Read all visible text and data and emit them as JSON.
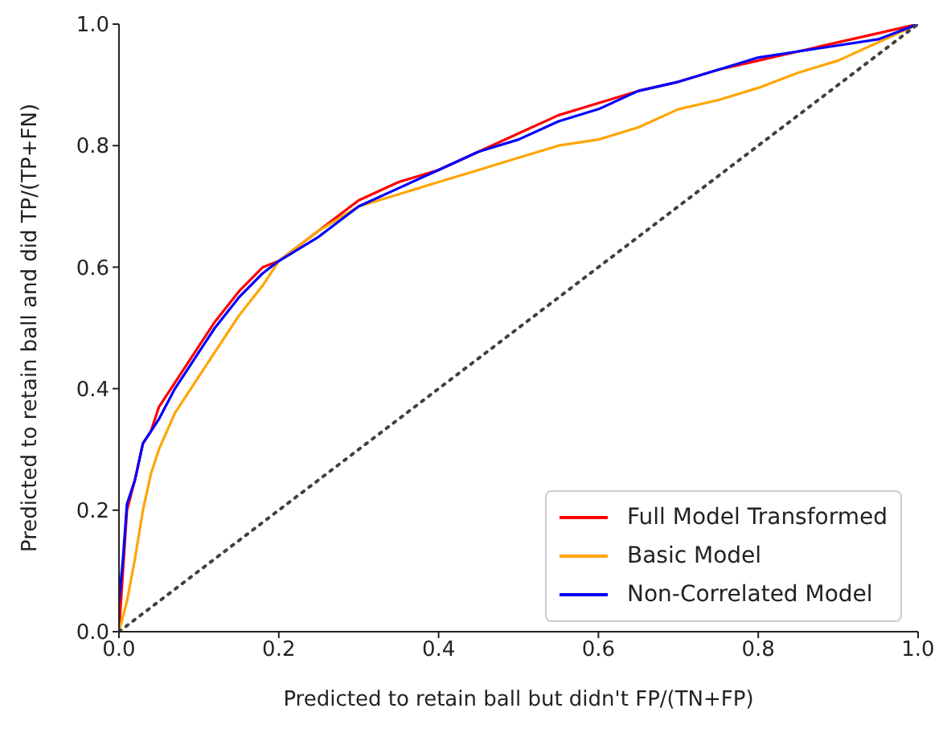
{
  "chart_data": {
    "type": "line",
    "xlabel": "Predicted to retain ball but didn't FP/(TN+FP)",
    "ylabel": "Predicted to retain ball and did TP/(TP+FN)",
    "xlim": [
      0,
      1
    ],
    "ylim": [
      0,
      1
    ],
    "xticks": [
      {
        "value": 0,
        "label": "0.0"
      },
      0.2,
      0.4,
      0.6,
      0.8,
      {
        "value": 1,
        "label": "1.0"
      }
    ],
    "yticks": [
      {
        "value": 0,
        "label": "0.0"
      },
      0.2,
      0.4,
      0.6,
      0.8,
      {
        "value": 1,
        "label": "1.0"
      }
    ],
    "legend": "bottom right",
    "marker": "none",
    "line_style": "solid",
    "series": [
      {
        "name": "Full Model Transformed",
        "color": "#ff0000",
        "x": [
          0,
          0.005,
          0.01,
          0.02,
          0.03,
          0.04,
          0.05,
          0.07,
          0.09,
          0.1,
          0.12,
          0.15,
          0.18,
          0.2,
          0.25,
          0.3,
          0.35,
          0.4,
          0.45,
          0.5,
          0.55,
          0.6,
          0.65,
          0.7,
          0.75,
          0.8,
          0.85,
          0.9,
          0.95,
          1
        ],
        "values": [
          0,
          0.1,
          0.2,
          0.25,
          0.31,
          0.33,
          0.37,
          0.41,
          0.45,
          0.47,
          0.51,
          0.56,
          0.6,
          0.61,
          0.66,
          0.71,
          0.74,
          0.76,
          0.79,
          0.82,
          0.85,
          0.87,
          0.89,
          0.905,
          0.925,
          0.94,
          0.955,
          0.97,
          0.985,
          1
        ]
      },
      {
        "name": "Basic Model",
        "color": "#ffa500",
        "x": [
          0,
          0.01,
          0.02,
          0.03,
          0.04,
          0.05,
          0.07,
          0.1,
          0.12,
          0.15,
          0.18,
          0.2,
          0.25,
          0.3,
          0.35,
          0.4,
          0.45,
          0.5,
          0.55,
          0.6,
          0.65,
          0.7,
          0.75,
          0.8,
          0.85,
          0.9,
          0.95,
          1
        ],
        "values": [
          0,
          0.05,
          0.12,
          0.2,
          0.26,
          0.3,
          0.36,
          0.42,
          0.46,
          0.52,
          0.57,
          0.61,
          0.66,
          0.7,
          0.72,
          0.74,
          0.76,
          0.78,
          0.8,
          0.81,
          0.83,
          0.86,
          0.875,
          0.895,
          0.92,
          0.94,
          0.97,
          1
        ]
      },
      {
        "name": "Non-Correlated Model",
        "color": "#0000ff",
        "x": [
          0,
          0.005,
          0.01,
          0.02,
          0.03,
          0.04,
          0.05,
          0.07,
          0.09,
          0.1,
          0.12,
          0.15,
          0.18,
          0.2,
          0.25,
          0.3,
          0.35,
          0.4,
          0.45,
          0.5,
          0.55,
          0.6,
          0.65,
          0.7,
          0.75,
          0.8,
          0.85,
          0.9,
          0.95,
          1
        ],
        "values": [
          0.05,
          0.12,
          0.21,
          0.25,
          0.31,
          0.33,
          0.35,
          0.4,
          0.44,
          0.46,
          0.5,
          0.55,
          0.59,
          0.61,
          0.65,
          0.7,
          0.73,
          0.76,
          0.79,
          0.81,
          0.84,
          0.86,
          0.89,
          0.905,
          0.925,
          0.945,
          0.955,
          0.965,
          0.975,
          1
        ]
      },
      {
        "color": "#404040",
        "line_style": "dotted",
        "x": [
          0,
          1
        ],
        "values": [
          0,
          1
        ]
      }
    ]
  }
}
